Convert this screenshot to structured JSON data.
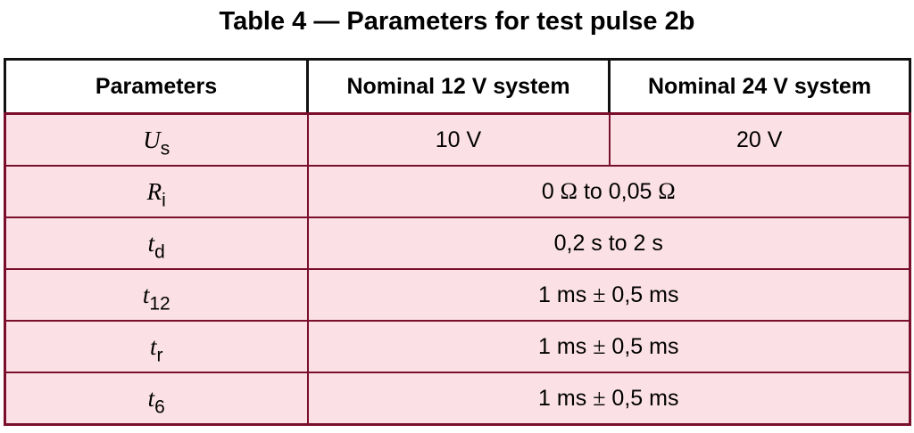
{
  "document": {
    "title": "Table 4 — Parameters for test pulse 2b"
  },
  "table": {
    "headers": [
      "Parameters",
      "Nominal 12 V system",
      "Nominal 24 V system"
    ],
    "rows": [
      {
        "symbol": "U",
        "subscript": "s",
        "value_12v": "10 V",
        "value_24v": "20 V"
      },
      {
        "symbol": "R",
        "subscript": "i",
        "low": "0",
        "between": "to 0,05",
        "unit": "Ω"
      },
      {
        "symbol": "t",
        "subscript": "d",
        "value": "0,2 s to 2 s"
      },
      {
        "symbol": "t",
        "subscript": "12",
        "nominal": "1 ms",
        "pm": "±",
        "tolerance": "0,5 ms"
      },
      {
        "symbol": "t",
        "subscript": "r",
        "nominal": "1 ms",
        "pm": "±",
        "tolerance": "0,5 ms"
      },
      {
        "symbol": "t",
        "subscript": "6",
        "nominal": "1 ms",
        "pm": "±",
        "tolerance": "0,5 ms"
      }
    ]
  },
  "colors": {
    "row_fill": "#fbe1e6",
    "border_accent": "#7a0f2c",
    "header_fill": "#ffffff"
  }
}
